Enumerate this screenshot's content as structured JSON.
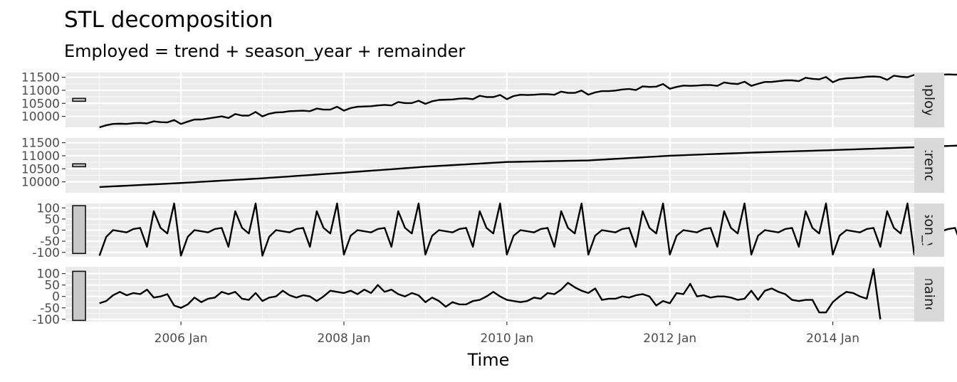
{
  "chart_data": {
    "type": "line",
    "title": "STL decomposition",
    "subtitle": "Employed = trend + season_year + remainder",
    "xlabel": "Time",
    "x_start": "2005 Jan",
    "x_end": "2014 Sep",
    "xlim": [
      "2004 Aug",
      "2015 Jan"
    ],
    "x_ticks": [
      {
        "label": "2006 Jan",
        "date": "2006-01"
      },
      {
        "label": "2008 Jan",
        "date": "2008-01"
      },
      {
        "label": "2010 Jan",
        "date": "2010-01"
      },
      {
        "label": "2012 Jan",
        "date": "2012-01"
      },
      {
        "label": "2014 Jan",
        "date": "2014-01"
      }
    ],
    "grid": true,
    "panels": [
      {
        "name": "Employed",
        "strip_label": "Employed",
        "ylim": [
          9580,
          11680
        ],
        "y_ticks": [
          10000,
          10500,
          11000,
          11500
        ],
        "y_tick_labels": [
          "10000",
          "10500",
          "11000",
          "11500"
        ],
        "scale_bar": [
          10580,
          10690
        ],
        "values": [
          9580,
          9660,
          9710,
          9720,
          9710,
          9740,
          9750,
          9730,
          9810,
          9780,
          9770,
          9860,
          9710,
          9800,
          9880,
          9880,
          9920,
          9960,
          10000,
          9940,
          10090,
          10030,
          10030,
          10170,
          10000,
          10100,
          10150,
          10160,
          10200,
          10210,
          10220,
          10200,
          10300,
          10260,
          10260,
          10370,
          10220,
          10320,
          10370,
          10380,
          10390,
          10420,
          10440,
          10420,
          10550,
          10510,
          10510,
          10600,
          10480,
          10580,
          10630,
          10640,
          10650,
          10680,
          10690,
          10660,
          10790,
          10740,
          10740,
          10820,
          10660,
          10780,
          10830,
          10820,
          10830,
          10850,
          10850,
          10830,
          10950,
          10900,
          10900,
          10990,
          10830,
          10920,
          10970,
          10970,
          10990,
          11030,
          11050,
          11010,
          11150,
          11130,
          11140,
          11240,
          11060,
          11130,
          11180,
          11170,
          11180,
          11200,
          11200,
          11170,
          11300,
          11260,
          11240,
          11330,
          11170,
          11250,
          11320,
          11320,
          11350,
          11380,
          11380,
          11350,
          11480,
          11440,
          11420,
          11510,
          11310,
          11420,
          11460,
          11470,
          11490,
          11520,
          11530,
          11510,
          11400,
          11560,
          11520,
          11500,
          11590,
          11400,
          11530,
          11580,
          11600,
          11610,
          11600,
          11610,
          11570
        ]
      },
      {
        "name": "trend",
        "strip_label": "trend",
        "ylim": [
          9580,
          11680
        ],
        "y_ticks": [
          10000,
          10500,
          11000,
          11500
        ],
        "y_tick_labels": [
          "10000",
          "10500",
          "11000",
          "11500"
        ],
        "scale_bar": [
          10580,
          10690
        ],
        "values": [
          9800,
          9813,
          9826,
          9839,
          9852,
          9865,
          9878,
          9891,
          9904,
          9917,
          9930,
          9943,
          9955,
          9970,
          9985,
          10000,
          10015,
          10030,
          10045,
          10060,
          10075,
          10090,
          10105,
          10120,
          10135,
          10153,
          10171,
          10189,
          10207,
          10225,
          10243,
          10261,
          10279,
          10297,
          10315,
          10333,
          10350,
          10369,
          10388,
          10407,
          10426,
          10445,
          10464,
          10483,
          10502,
          10521,
          10540,
          10559,
          10580,
          10595,
          10610,
          10625,
          10640,
          10655,
          10670,
          10685,
          10700,
          10715,
          10730,
          10745,
          10760,
          10765,
          10770,
          10775,
          10780,
          10785,
          10790,
          10795,
          10800,
          10805,
          10810,
          10815,
          10820,
          10835,
          10850,
          10865,
          10880,
          10895,
          10910,
          10925,
          10940,
          10955,
          10970,
          10985,
          11000,
          11010,
          11020,
          11030,
          11040,
          11050,
          11060,
          11070,
          11080,
          11090,
          11100,
          11110,
          11120,
          11128,
          11136,
          11144,
          11152,
          11160,
          11168,
          11176,
          11184,
          11192,
          11200,
          11208,
          11216,
          11225,
          11234,
          11243,
          11252,
          11261,
          11270,
          11279,
          11288,
          11297,
          11306,
          11315,
          11324,
          11334,
          11344,
          11354,
          11364,
          11374,
          11384,
          11394,
          11404
        ]
      },
      {
        "name": "season_year",
        "strip_label": "season_year",
        "ylim": [
          -120,
          120
        ],
        "y_ticks": [
          -100,
          -50,
          0,
          50,
          100
        ],
        "y_tick_labels": [
          "-100",
          "-50",
          "0",
          "50",
          "100"
        ],
        "scale_bar": [
          -105,
          110
        ],
        "values": [
          -115,
          -30,
          0,
          -5,
          -10,
          5,
          10,
          -75,
          85,
          10,
          -15,
          120,
          -115,
          -30,
          0,
          -5,
          -10,
          5,
          10,
          -75,
          85,
          10,
          -15,
          120,
          -115,
          -30,
          0,
          -5,
          -10,
          5,
          10,
          -75,
          85,
          10,
          -15,
          120,
          -110,
          -25,
          0,
          -5,
          -10,
          5,
          10,
          -75,
          85,
          10,
          -15,
          120,
          -110,
          -25,
          0,
          -5,
          -10,
          5,
          10,
          -75,
          85,
          10,
          -15,
          120,
          -110,
          -25,
          0,
          -5,
          -10,
          5,
          10,
          -75,
          85,
          10,
          -15,
          120,
          -110,
          -25,
          0,
          -5,
          -10,
          5,
          10,
          -75,
          85,
          10,
          -15,
          120,
          -110,
          -25,
          0,
          -5,
          -10,
          5,
          10,
          -75,
          85,
          10,
          -15,
          120,
          -110,
          -25,
          0,
          -5,
          -10,
          5,
          10,
          -75,
          85,
          10,
          -15,
          120,
          -110,
          -25,
          0,
          -5,
          -10,
          5,
          10,
          -75,
          85,
          10,
          -15,
          120,
          -110,
          -25,
          0,
          0,
          -5,
          5,
          10,
          -75,
          85,
          10,
          -15,
          120,
          -110,
          -25,
          0,
          0,
          -5,
          5,
          10,
          -75,
          85
        ]
      },
      {
        "name": "remainder",
        "strip_label": "remainder",
        "ylim": [
          -110,
          130
        ],
        "y_ticks": [
          -100,
          -50,
          0,
          50,
          100
        ],
        "y_tick_labels": [
          "-100",
          "-50",
          "0",
          "50",
          "100"
        ],
        "scale_bar": [
          -105,
          110
        ],
        "values": [
          -30,
          -20,
          5,
          20,
          5,
          15,
          10,
          30,
          -5,
          0,
          10,
          -40,
          -50,
          -35,
          -5,
          -25,
          -10,
          -5,
          20,
          10,
          20,
          -10,
          -15,
          15,
          -20,
          -5,
          0,
          25,
          5,
          -5,
          5,
          0,
          -20,
          0,
          25,
          20,
          15,
          25,
          10,
          30,
          15,
          50,
          20,
          30,
          10,
          0,
          15,
          5,
          -25,
          -5,
          -20,
          -45,
          -25,
          -35,
          -35,
          -20,
          -15,
          0,
          20,
          0,
          -15,
          -20,
          -25,
          -20,
          -5,
          -10,
          15,
          10,
          30,
          60,
          40,
          25,
          15,
          35,
          -15,
          -10,
          -10,
          0,
          -5,
          5,
          10,
          0,
          -40,
          -20,
          -30,
          15,
          10,
          55,
          0,
          5,
          -5,
          0,
          0,
          -5,
          -15,
          -10,
          25,
          -15,
          25,
          35,
          20,
          10,
          -15,
          -20,
          -15,
          -15,
          -70,
          -70,
          -25,
          0,
          20,
          15,
          0,
          -10,
          120,
          -100
        ]
      }
    ]
  }
}
